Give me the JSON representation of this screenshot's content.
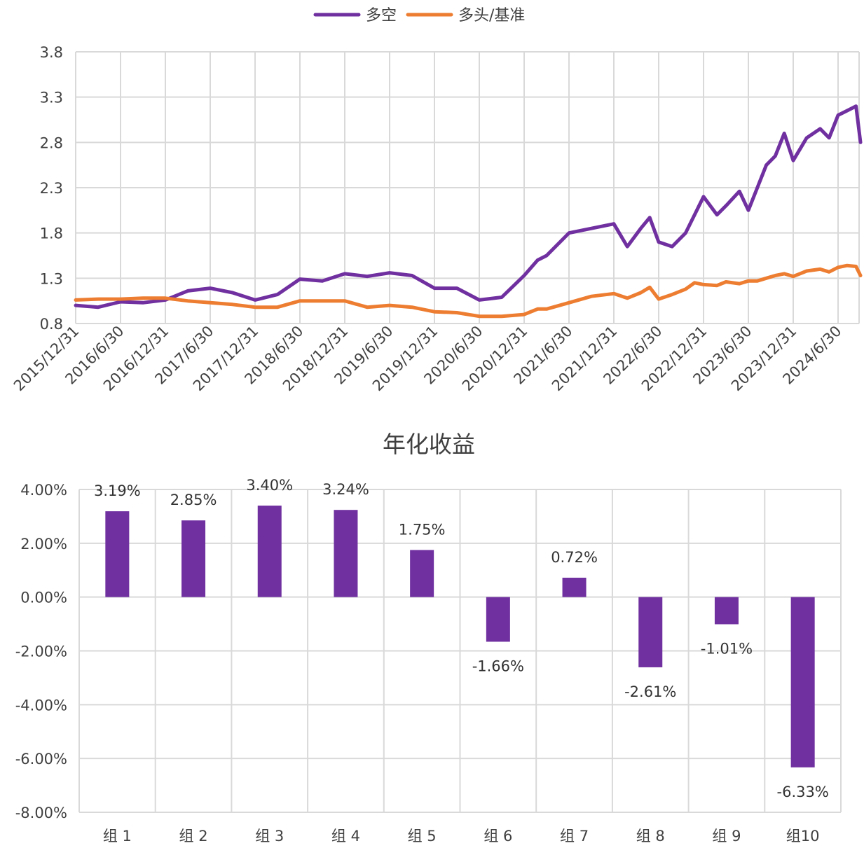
{
  "chart_data": [
    {
      "type": "line",
      "legend": [
        {
          "name": "多空",
          "color": "#7030a0"
        },
        {
          "name": "多头/基准",
          "color": "#ed7d31"
        }
      ],
      "legend_position": "top-center",
      "y_ticks": [
        "0.8",
        "1.3",
        "1.8",
        "2.3",
        "2.8",
        "3.3",
        "3.8"
      ],
      "ylim": [
        0.8,
        3.8
      ],
      "x_ticks": [
        "2015/12/31",
        "2016/6/30",
        "2016/12/31",
        "2017/6/30",
        "2017/12/31",
        "2018/6/30",
        "2018/12/31",
        "2019/6/30",
        "2019/12/31",
        "2020/6/30",
        "2020/12/31",
        "2021/6/30",
        "2021/12/31",
        "2022/6/30",
        "2022/12/31",
        "2023/6/30",
        "2023/12/31",
        "2024/6/30"
      ],
      "grid": true,
      "series": [
        {
          "name": "多空",
          "color": "#7030a0",
          "x": [
            0,
            0.5,
            1,
            1.5,
            2,
            2.5,
            3,
            3.5,
            4,
            4.5,
            5,
            5.5,
            6,
            6.5,
            7,
            7.5,
            8,
            8.5,
            9,
            9.5,
            10,
            10.3,
            10.5,
            11,
            11.5,
            12,
            12.3,
            12.6,
            12.8,
            13,
            13.3,
            13.6,
            13.8,
            14,
            14.3,
            14.5,
            14.8,
            15,
            15.2,
            15.4,
            15.6,
            15.8,
            16,
            16.3,
            16.6,
            16.8,
            17,
            17.2,
            17.4,
            17.5
          ],
          "values": [
            1.0,
            0.98,
            1.04,
            1.03,
            1.06,
            1.16,
            1.19,
            1.14,
            1.06,
            1.12,
            1.29,
            1.27,
            1.35,
            1.32,
            1.36,
            1.33,
            1.19,
            1.19,
            1.06,
            1.09,
            1.33,
            1.5,
            1.55,
            1.8,
            1.85,
            1.9,
            1.65,
            1.85,
            1.97,
            1.7,
            1.65,
            1.8,
            2.0,
            2.2,
            2.0,
            2.1,
            2.26,
            2.05,
            2.3,
            2.55,
            2.65,
            2.9,
            2.6,
            2.85,
            2.95,
            2.85,
            3.1,
            3.15,
            3.2,
            2.8
          ]
        },
        {
          "name": "多头/基准",
          "color": "#ed7d31",
          "x": [
            0,
            0.5,
            1,
            1.5,
            2,
            2.5,
            3,
            3.5,
            4,
            4.5,
            5,
            5.5,
            6,
            6.5,
            7,
            7.5,
            8,
            8.5,
            9,
            9.5,
            10,
            10.3,
            10.5,
            11,
            11.5,
            12,
            12.3,
            12.6,
            12.8,
            13,
            13.3,
            13.6,
            13.8,
            14,
            14.3,
            14.5,
            14.8,
            15,
            15.2,
            15.4,
            15.6,
            15.8,
            16,
            16.3,
            16.6,
            16.8,
            17,
            17.2,
            17.4,
            17.5
          ],
          "values": [
            1.06,
            1.07,
            1.07,
            1.08,
            1.08,
            1.05,
            1.03,
            1.01,
            0.98,
            0.98,
            1.05,
            1.05,
            1.05,
            0.98,
            1.0,
            0.98,
            0.93,
            0.92,
            0.88,
            0.88,
            0.9,
            0.96,
            0.96,
            1.03,
            1.1,
            1.13,
            1.08,
            1.14,
            1.2,
            1.07,
            1.12,
            1.18,
            1.25,
            1.23,
            1.22,
            1.26,
            1.24,
            1.27,
            1.27,
            1.3,
            1.33,
            1.35,
            1.32,
            1.38,
            1.4,
            1.37,
            1.42,
            1.44,
            1.43,
            1.33
          ]
        }
      ]
    },
    {
      "type": "bar",
      "title": "年化收益",
      "categories": [
        "组 1",
        "组 2",
        "组 3",
        "组 4",
        "组 5",
        "组 6",
        "组 7",
        "组 8",
        "组 9",
        "组10"
      ],
      "values": [
        3.19,
        2.85,
        3.4,
        3.24,
        1.75,
        -1.66,
        0.72,
        -2.61,
        -1.01,
        -6.33
      ],
      "data_labels": [
        "3.19%",
        "2.85%",
        "3.40%",
        "3.24%",
        "1.75%",
        "-1.66%",
        "0.72%",
        "-2.61%",
        "-1.01%",
        "-6.33%"
      ],
      "y_ticks": [
        "4.00%",
        "2.00%",
        "0.00%",
        "-2.00%",
        "-4.00%",
        "-6.00%",
        "-8.00%"
      ],
      "ylim": [
        -8,
        4
      ],
      "bar_color": "#7030a0",
      "grid": true
    }
  ]
}
